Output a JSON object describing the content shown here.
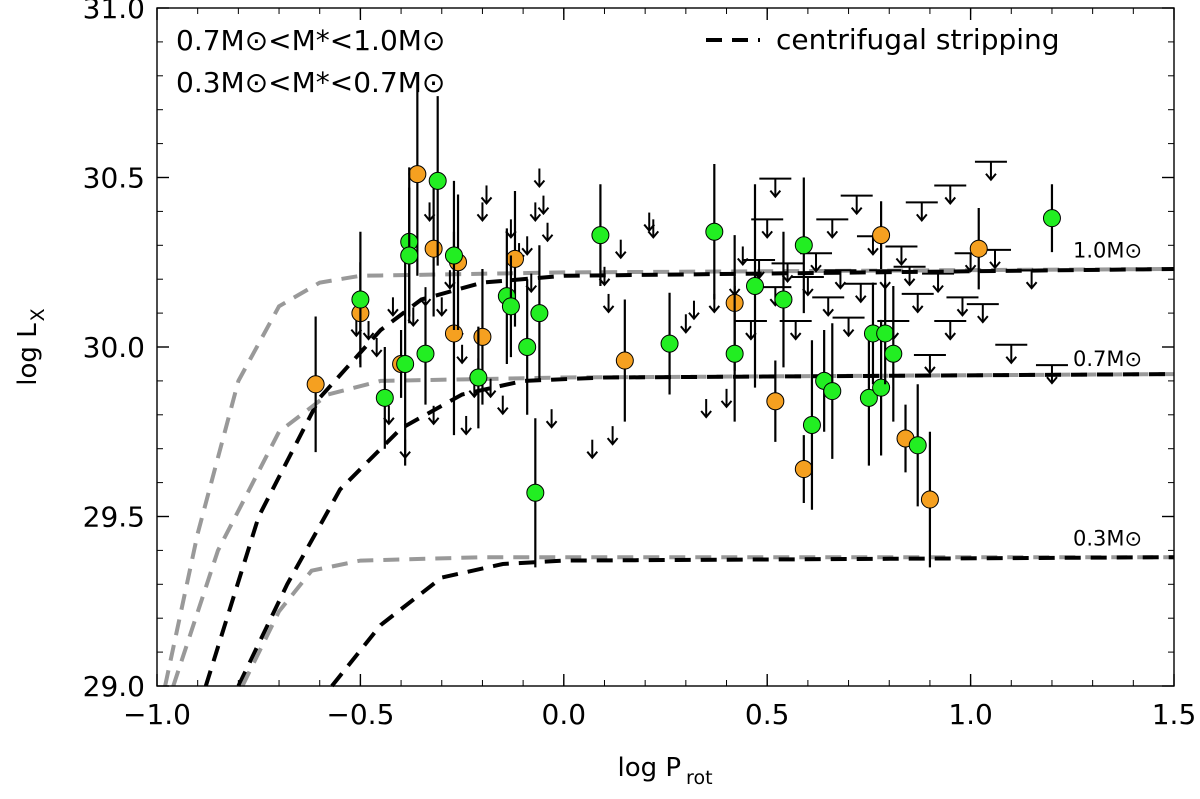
{
  "chart_data": {
    "type": "scatter",
    "title": "",
    "xlabel": "log P",
    "xlabel_sub": "rot",
    "ylabel": "log L",
    "ylabel_sub": "X",
    "xlim": [
      -1.0,
      1.5
    ],
    "ylim": [
      29.0,
      31.0
    ],
    "x_ticks": [
      {
        "value": -1.0,
        "label": "−1.0"
      },
      {
        "value": -0.5,
        "label": "−0.5"
      },
      {
        "value": 0.0,
        "label": "0.0"
      },
      {
        "value": 0.5,
        "label": "0.5"
      },
      {
        "value": 1.0,
        "label": "1.0"
      },
      {
        "value": 1.5,
        "label": "1.5"
      }
    ],
    "y_ticks": [
      {
        "value": 29.0,
        "label": "29.0"
      },
      {
        "value": 29.5,
        "label": "29.5"
      },
      {
        "value": 30.0,
        "label": "30.0"
      },
      {
        "value": 30.5,
        "label": "30.5"
      },
      {
        "value": 31.0,
        "label": "31.0"
      }
    ],
    "grid": false,
    "legend": {
      "placement": "top-right",
      "entries": [
        {
          "label": "centrifugal stripping",
          "style": "dashed",
          "color": "#000000"
        }
      ]
    },
    "mass_labels": {
      "position": "top-left",
      "entries": [
        {
          "label": "0.7M⊙<M*<1.0M⊙",
          "color": "#22ee22"
        },
        {
          "label": "0.3M⊙<M*<0.7M⊙",
          "color": "#f5a020"
        }
      ]
    },
    "curve_labels": [
      {
        "label": "1.0M⊙",
        "x": 1.35,
        "y": 30.27
      },
      {
        "label": "0.7M⊙",
        "x": 1.35,
        "y": 29.95
      },
      {
        "label": "0.3M⊙",
        "x": 1.35,
        "y": 29.42
      }
    ],
    "model_curves": [
      {
        "name": "1.0",
        "color": "#999999",
        "points": [
          [
            -0.98,
            29.0
          ],
          [
            -0.9,
            29.45
          ],
          [
            -0.8,
            29.9
          ],
          [
            -0.7,
            30.12
          ],
          [
            -0.6,
            30.19
          ],
          [
            -0.5,
            30.21
          ],
          [
            0.0,
            30.22
          ],
          [
            1.5,
            30.23
          ]
        ]
      },
      {
        "name": "1.0",
        "color": "#000000",
        "points": [
          [
            -0.88,
            29.0
          ],
          [
            -0.75,
            29.5
          ],
          [
            -0.6,
            29.85
          ],
          [
            -0.45,
            30.05
          ],
          [
            -0.35,
            30.14
          ],
          [
            -0.2,
            30.19
          ],
          [
            0.0,
            30.21
          ],
          [
            1.5,
            30.23
          ]
        ]
      },
      {
        "name": "0.7",
        "color": "#999999",
        "points": [
          [
            -0.96,
            29.0
          ],
          [
            -0.85,
            29.4
          ],
          [
            -0.7,
            29.75
          ],
          [
            -0.58,
            29.86
          ],
          [
            -0.45,
            29.9
          ],
          [
            0.0,
            29.91
          ],
          [
            1.5,
            29.92
          ]
        ]
      },
      {
        "name": "0.7",
        "color": "#000000",
        "points": [
          [
            -0.8,
            29.0
          ],
          [
            -0.68,
            29.3
          ],
          [
            -0.55,
            29.58
          ],
          [
            -0.4,
            29.76
          ],
          [
            -0.25,
            29.86
          ],
          [
            -0.1,
            29.9
          ],
          [
            0.1,
            29.91
          ],
          [
            1.5,
            29.92
          ]
        ]
      },
      {
        "name": "0.3",
        "color": "#999999",
        "points": [
          [
            -0.79,
            29.0
          ],
          [
            -0.7,
            29.22
          ],
          [
            -0.62,
            29.34
          ],
          [
            -0.5,
            29.37
          ],
          [
            -0.2,
            29.38
          ],
          [
            1.5,
            29.38
          ]
        ]
      },
      {
        "name": "0.3",
        "color": "#000000",
        "points": [
          [
            -0.57,
            29.0
          ],
          [
            -0.45,
            29.18
          ],
          [
            -0.3,
            29.32
          ],
          [
            -0.15,
            29.36
          ],
          [
            0.0,
            29.37
          ],
          [
            1.5,
            29.38
          ]
        ]
      }
    ],
    "series": [
      {
        "name": "0.7M⊙<M*<1.0M⊙",
        "color": "#22ee22",
        "points": [
          {
            "x": -0.5,
            "y": 30.14,
            "yerr": 0.2
          },
          {
            "x": -0.44,
            "y": 29.85,
            "yerr": 0.15
          },
          {
            "x": -0.39,
            "y": 29.95,
            "yerr": 0.3
          },
          {
            "x": -0.38,
            "y": 30.31,
            "yerr": 0.22
          },
          {
            "x": -0.38,
            "y": 30.27,
            "yerr": 0.2
          },
          {
            "x": -0.34,
            "y": 29.98,
            "yerr": 0.15
          },
          {
            "x": -0.31,
            "y": 30.49,
            "yerr": 0.25
          },
          {
            "x": -0.27,
            "y": 30.27,
            "yerr": 0.22
          },
          {
            "x": -0.21,
            "y": 29.91,
            "yerr": 0.15
          },
          {
            "x": -0.14,
            "y": 30.15,
            "yerr": 0.2
          },
          {
            "x": -0.13,
            "y": 30.12,
            "yerr": 0.15
          },
          {
            "x": -0.09,
            "y": 30.0,
            "yerr": 0.2
          },
          {
            "x": -0.07,
            "y": 29.57,
            "yerr": 0.22
          },
          {
            "x": -0.06,
            "y": 30.1,
            "yerr": 0.2
          },
          {
            "x": 0.09,
            "y": 30.33,
            "yerr": 0.15
          },
          {
            "x": 0.26,
            "y": 30.01,
            "yerr": 0.15
          },
          {
            "x": 0.37,
            "y": 30.34,
            "yerr": 0.2
          },
          {
            "x": 0.42,
            "y": 29.98,
            "yerr": 0.2
          },
          {
            "x": 0.47,
            "y": 30.18,
            "yerr": 0.3
          },
          {
            "x": 0.54,
            "y": 30.14,
            "yerr": 0.2
          },
          {
            "x": 0.59,
            "y": 30.3,
            "yerr": 0.2
          },
          {
            "x": 0.61,
            "y": 29.77,
            "yerr": 0.25
          },
          {
            "x": 0.64,
            "y": 29.9,
            "yerr": 0.15
          },
          {
            "x": 0.66,
            "y": 29.87,
            "yerr": 0.2
          },
          {
            "x": 0.75,
            "y": 29.85,
            "yerr": 0.2
          },
          {
            "x": 0.76,
            "y": 30.04,
            "yerr": 0.15
          },
          {
            "x": 0.78,
            "y": 29.88,
            "yerr": 0.2
          },
          {
            "x": 0.79,
            "y": 30.04,
            "yerr": 0.15
          },
          {
            "x": 0.81,
            "y": 29.98,
            "yerr": 0.2
          },
          {
            "x": 0.87,
            "y": 29.71,
            "yerr": 0.18
          },
          {
            "x": 1.2,
            "y": 30.38,
            "yerr": 0.1
          }
        ]
      },
      {
        "name": "0.3M⊙<M*<0.7M⊙",
        "color": "#f5a020",
        "points": [
          {
            "x": -0.61,
            "y": 29.89,
            "yerr": 0.2
          },
          {
            "x": -0.5,
            "y": 30.1,
            "yerr": 0.15
          },
          {
            "x": -0.4,
            "y": 29.95,
            "yerr": 0.1
          },
          {
            "x": -0.36,
            "y": 30.51,
            "yerr": 0.3
          },
          {
            "x": -0.32,
            "y": 30.29,
            "yerr": 0.2
          },
          {
            "x": -0.27,
            "y": 30.04,
            "yerr": 0.3
          },
          {
            "x": -0.26,
            "y": 30.25,
            "yerr": 0.2
          },
          {
            "x": -0.2,
            "y": 30.03,
            "yerr": 0.2
          },
          {
            "x": -0.12,
            "y": 30.26,
            "yerr": 0.2
          },
          {
            "x": 0.15,
            "y": 29.96,
            "yerr": 0.18
          },
          {
            "x": 0.42,
            "y": 30.13,
            "yerr": 0.2
          },
          {
            "x": 0.52,
            "y": 29.84,
            "yerr": 0.12
          },
          {
            "x": 0.59,
            "y": 29.64,
            "yerr": 0.1
          },
          {
            "x": 0.78,
            "y": 30.33,
            "yerr": 0.1
          },
          {
            "x": 0.84,
            "y": 29.73,
            "yerr": 0.1
          },
          {
            "x": 0.9,
            "y": 29.55,
            "yerr": 0.2
          },
          {
            "x": 1.02,
            "y": 30.29,
            "yerr": 0.12
          }
        ]
      },
      {
        "name": "upper limits",
        "color": "#000000",
        "points": [
          {
            "x": -0.51,
            "y": 30.06
          },
          {
            "x": -0.48,
            "y": 30.05
          },
          {
            "x": -0.46,
            "y": 30.0
          },
          {
            "x": -0.43,
            "y": 29.8
          },
          {
            "x": -0.42,
            "y": 30.12
          },
          {
            "x": -0.37,
            "y": 30.09
          },
          {
            "x": -0.34,
            "y": 30.15
          },
          {
            "x": -0.39,
            "y": 29.7
          },
          {
            "x": -0.33,
            "y": 30.4
          },
          {
            "x": -0.32,
            "y": 29.8
          },
          {
            "x": -0.3,
            "y": 30.12
          },
          {
            "x": -0.28,
            "y": 30.2
          },
          {
            "x": -0.26,
            "y": 30.05
          },
          {
            "x": -0.25,
            "y": 29.98
          },
          {
            "x": -0.24,
            "y": 29.77
          },
          {
            "x": -0.22,
            "y": 29.88
          },
          {
            "x": -0.21,
            "y": 29.94
          },
          {
            "x": -0.2,
            "y": 30.4
          },
          {
            "x": -0.19,
            "y": 30.45
          },
          {
            "x": -0.18,
            "y": 29.88
          },
          {
            "x": -0.15,
            "y": 29.83
          },
          {
            "x": -0.13,
            "y": 30.35
          },
          {
            "x": -0.11,
            "y": 30.28
          },
          {
            "x": -0.09,
            "y": 30.3
          },
          {
            "x": -0.08,
            "y": 30.19
          },
          {
            "x": -0.07,
            "y": 30.4
          },
          {
            "x": -0.06,
            "y": 30.5
          },
          {
            "x": -0.05,
            "y": 30.42
          },
          {
            "x": -0.04,
            "y": 30.34
          },
          {
            "x": -0.03,
            "y": 29.79
          },
          {
            "x": 0.07,
            "y": 29.7
          },
          {
            "x": 0.1,
            "y": 30.21
          },
          {
            "x": 0.11,
            "y": 30.13
          },
          {
            "x": 0.12,
            "y": 29.74
          },
          {
            "x": 0.14,
            "y": 30.29
          },
          {
            "x": 0.21,
            "y": 30.37
          },
          {
            "x": 0.22,
            "y": 30.35
          },
          {
            "x": 0.3,
            "y": 30.07
          },
          {
            "x": 0.32,
            "y": 30.11
          },
          {
            "x": 0.35,
            "y": 29.82
          },
          {
            "x": 0.37,
            "y": 30.13
          },
          {
            "x": 0.4,
            "y": 29.85
          },
          {
            "x": 0.42,
            "y": 30.18
          },
          {
            "x": 0.44,
            "y": 30.27
          },
          {
            "x": 0.46,
            "y": 30.05
          },
          {
            "x": 0.48,
            "y": 30.23
          },
          {
            "x": 0.5,
            "y": 30.35
          },
          {
            "x": 0.52,
            "y": 30.15
          },
          {
            "x": 0.55,
            "y": 30.22
          },
          {
            "x": 0.57,
            "y": 30.05
          },
          {
            "x": 0.6,
            "y": 30.18
          },
          {
            "x": 0.62,
            "y": 30.25
          },
          {
            "x": 0.65,
            "y": 30.12
          },
          {
            "x": 0.68,
            "y": 30.2
          },
          {
            "x": 0.7,
            "y": 30.06
          },
          {
            "x": 0.73,
            "y": 30.16
          },
          {
            "x": 0.76,
            "y": 30.3
          },
          {
            "x": 0.79,
            "y": 30.2
          },
          {
            "x": 0.81,
            "y": 30.05
          },
          {
            "x": 0.83,
            "y": 30.27
          },
          {
            "x": 0.85,
            "y": 30.21
          },
          {
            "x": 0.87,
            "y": 30.13
          },
          {
            "x": 0.9,
            "y": 29.95
          },
          {
            "x": 0.92,
            "y": 30.19
          },
          {
            "x": 0.95,
            "y": 30.05
          },
          {
            "x": 0.98,
            "y": 30.12
          },
          {
            "x": 1.0,
            "y": 30.25
          },
          {
            "x": 1.03,
            "y": 30.1
          },
          {
            "x": 1.06,
            "y": 30.26
          },
          {
            "x": 1.1,
            "y": 29.98
          },
          {
            "x": 1.15,
            "y": 30.2
          },
          {
            "x": 1.2,
            "y": 29.92
          },
          {
            "x": 0.52,
            "y": 30.47
          },
          {
            "x": 0.66,
            "y": 30.35
          },
          {
            "x": 0.72,
            "y": 30.42
          },
          {
            "x": 0.88,
            "y": 30.4
          },
          {
            "x": 0.95,
            "y": 30.45
          },
          {
            "x": 1.05,
            "y": 30.52
          }
        ]
      }
    ]
  }
}
